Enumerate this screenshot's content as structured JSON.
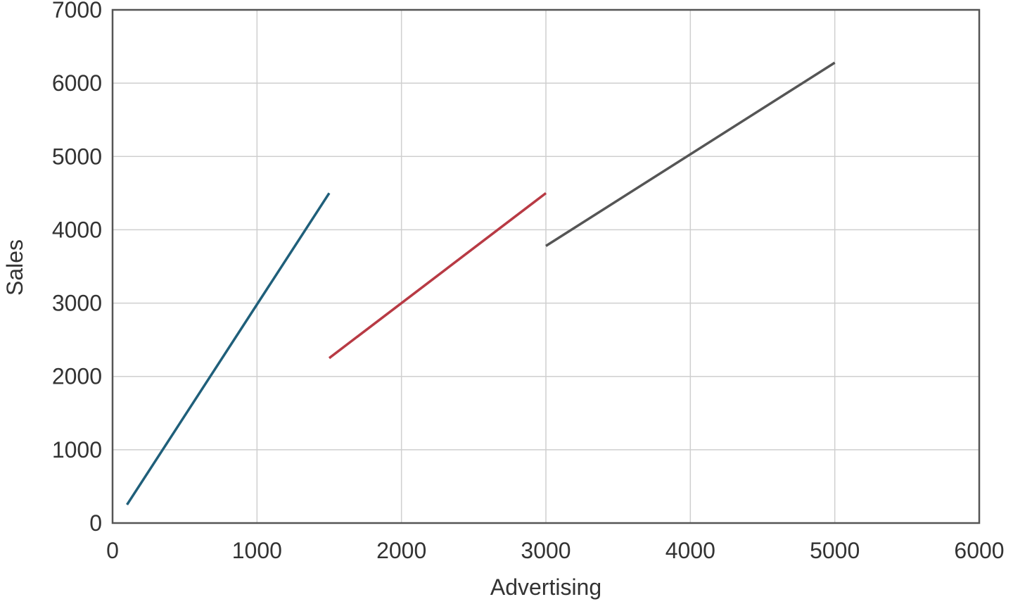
{
  "chart_data": {
    "type": "line",
    "xlabel": "Advertising",
    "ylabel": "Sales",
    "xlim": [
      0,
      6000
    ],
    "ylim": [
      0,
      7000
    ],
    "xticks": [
      0,
      1000,
      2000,
      3000,
      4000,
      5000,
      6000
    ],
    "yticks": [
      0,
      1000,
      2000,
      3000,
      4000,
      5000,
      6000,
      7000
    ],
    "grid": true,
    "series": [
      {
        "color": "#1f5f7a",
        "x": [
          100,
          1500
        ],
        "y": [
          250,
          4500
        ]
      },
      {
        "color": "#b83a44",
        "x": [
          1500,
          3000
        ],
        "y": [
          2250,
          4500
        ]
      },
      {
        "color": "#555555",
        "x": [
          3000,
          5000
        ],
        "y": [
          3780,
          6280
        ]
      }
    ]
  }
}
